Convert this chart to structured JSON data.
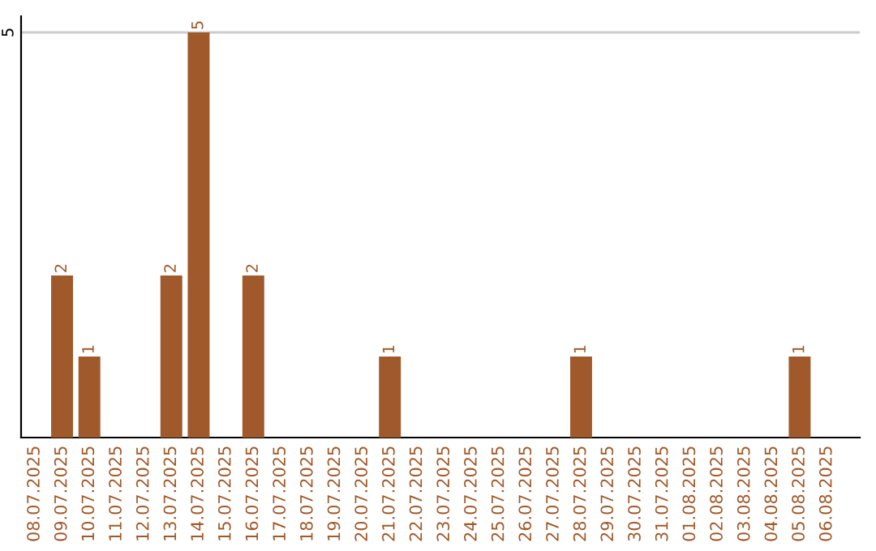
{
  "chart_data": {
    "type": "bar",
    "categories": [
      "08.07.2025",
      "09.07.2025",
      "10.07.2025",
      "11.07.2025",
      "12.07.2025",
      "13.07.2025",
      "14.07.2025",
      "15.07.2025",
      "16.07.2025",
      "17.07.2025",
      "18.07.2025",
      "19.07.2025",
      "20.07.2025",
      "21.07.2025",
      "22.07.2025",
      "23.07.2025",
      "24.07.2025",
      "25.07.2025",
      "26.07.2025",
      "27.07.2025",
      "28.07.2025",
      "29.07.2025",
      "30.07.2025",
      "31.07.2025",
      "01.08.2025",
      "02.08.2025",
      "03.08.2025",
      "04.08.2025",
      "05.08.2025",
      "06.08.2025"
    ],
    "values": [
      0,
      2,
      1,
      0,
      0,
      2,
      5,
      0,
      2,
      0,
      0,
      0,
      0,
      1,
      0,
      0,
      0,
      0,
      0,
      0,
      1,
      0,
      0,
      0,
      0,
      0,
      0,
      0,
      1,
      0
    ],
    "color": "#a0592a",
    "value_labels": [
      null,
      "2",
      "1",
      null,
      null,
      "2",
      "5",
      null,
      "2",
      null,
      null,
      null,
      null,
      "1",
      null,
      null,
      null,
      null,
      null,
      null,
      "1",
      null,
      null,
      null,
      null,
      null,
      null,
      null,
      "1",
      null
    ],
    "ylim": [
      0,
      5.2
    ],
    "yticks": [
      5
    ],
    "grid": "y"
  }
}
